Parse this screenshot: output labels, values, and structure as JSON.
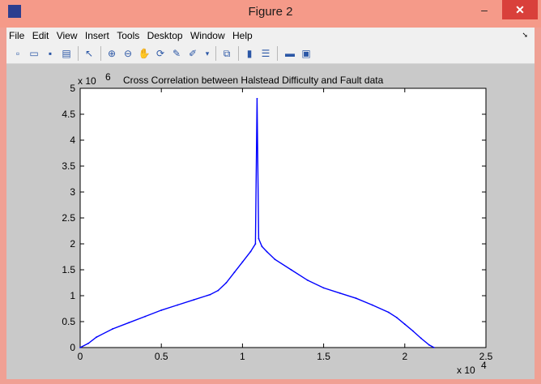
{
  "window": {
    "title": "Figure 2",
    "controls": {
      "minimize": "–",
      "maximize": "□",
      "close": "✕"
    },
    "colors": {
      "titlebar": "#f59a89",
      "close": "#d9403b",
      "figure_bg": "#c9c9c9",
      "plot_line": "#0000ff"
    }
  },
  "menu": {
    "items": [
      "File",
      "Edit",
      "View",
      "Insert",
      "Tools",
      "Desktop",
      "Window",
      "Help"
    ],
    "overflow_arrow": "➘"
  },
  "toolbar": {
    "icons": [
      "new-figure-icon",
      "open-file-icon",
      "save-icon",
      "print-icon",
      "select-arrow-icon",
      "zoom-in-icon",
      "zoom-out-icon",
      "pan-icon",
      "rotate-3d-icon",
      "data-cursor-icon",
      "brush-icon",
      "link-icon",
      "colorbar-icon",
      "legend-icon",
      "hide-plot-tools-icon",
      "show-plot-tools-icon"
    ]
  },
  "chart_data": {
    "type": "line",
    "title": "Cross Correlation between Halstead Difficulty and Fault data",
    "xlabel": "",
    "ylabel": "",
    "x_exponent_label": "x 10",
    "x_exponent": "4",
    "y_exponent_label": "x 10",
    "y_exponent": "6",
    "xlim": [
      0,
      2.5
    ],
    "ylim": [
      0,
      5
    ],
    "xticks": [
      "0",
      "0.5",
      "1",
      "1.5",
      "2",
      "2.5"
    ],
    "yticks": [
      "0",
      "0.5",
      "1",
      "1.5",
      "2",
      "2.5",
      "3",
      "3.5",
      "4",
      "4.5",
      "5"
    ],
    "grid": false,
    "series": [
      {
        "color": "#0000ff",
        "x": [
          0.0,
          0.05,
          0.1,
          0.2,
          0.3,
          0.4,
          0.5,
          0.6,
          0.7,
          0.8,
          0.85,
          0.9,
          0.95,
          1.0,
          1.05,
          1.08,
          1.09,
          1.1,
          1.12,
          1.15,
          1.2,
          1.3,
          1.4,
          1.5,
          1.6,
          1.7,
          1.8,
          1.9,
          1.95,
          2.0,
          2.05,
          2.1,
          2.15,
          2.18
        ],
        "y": [
          0.0,
          0.08,
          0.2,
          0.36,
          0.48,
          0.6,
          0.72,
          0.82,
          0.92,
          1.02,
          1.1,
          1.25,
          1.45,
          1.65,
          1.85,
          2.0,
          4.8,
          2.1,
          1.95,
          1.85,
          1.7,
          1.5,
          1.3,
          1.15,
          1.05,
          0.95,
          0.82,
          0.68,
          0.58,
          0.45,
          0.32,
          0.18,
          0.05,
          0.0
        ]
      }
    ]
  }
}
